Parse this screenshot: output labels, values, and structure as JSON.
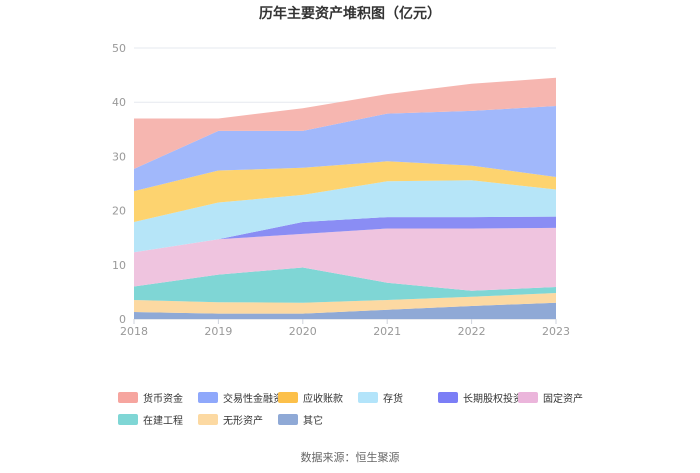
{
  "chart_data": {
    "type": "area",
    "title": "历年主要资产堆积图（亿元）",
    "xlabel": "",
    "ylabel": "",
    "categories": [
      "2018",
      "2019",
      "2020",
      "2021",
      "2022",
      "2023"
    ],
    "ylim": [
      0,
      50
    ],
    "yticks": [
      0,
      10,
      20,
      30,
      40,
      50
    ],
    "stacked": true,
    "series": [
      {
        "name": "其它",
        "color": "#8fa9d6",
        "values": [
          1.3,
          1.0,
          1.0,
          1.7,
          2.4,
          3.0
        ]
      },
      {
        "name": "无形资产",
        "color": "#fcd9a2",
        "values": [
          2.2,
          2.1,
          2.0,
          1.8,
          1.7,
          1.8
        ]
      },
      {
        "name": "在建工程",
        "color": "#7fd6d5",
        "values": [
          2.5,
          5.1,
          6.5,
          3.2,
          1.1,
          1.1
        ]
      },
      {
        "name": "固定资产",
        "color": "#efc4df",
        "values": [
          6.3,
          6.5,
          6.2,
          10.0,
          11.5,
          10.9
        ]
      },
      {
        "name": "长期股权投资",
        "color": "#8a8df4",
        "values": [
          0.0,
          0.0,
          2.2,
          2.1,
          2.1,
          2.1
        ]
      },
      {
        "name": "存货",
        "color": "#b6e5f8",
        "values": [
          5.6,
          6.8,
          5.0,
          6.6,
          6.8,
          5.0
        ]
      },
      {
        "name": "应收账款",
        "color": "#fdd36f",
        "values": [
          5.7,
          5.9,
          5.0,
          3.7,
          2.7,
          2.3
        ]
      },
      {
        "name": "交易性金融资产",
        "color": "#a1b8fb",
        "values": [
          4.1,
          7.3,
          6.8,
          8.8,
          10.1,
          13.1
        ]
      },
      {
        "name": "货币资金",
        "color": "#f6b6b0",
        "values": [
          9.3,
          2.3,
          4.2,
          3.6,
          5.0,
          5.2
        ]
      }
    ],
    "legend": {
      "position": "bottom",
      "order": [
        "货币资金",
        "交易性金融资产",
        "应收账款",
        "存货",
        "长期股权投资",
        "固定资产",
        "在建工程",
        "无形资产",
        "其它"
      ],
      "colors": [
        "#f6a59f",
        "#8fa8fb",
        "#fcc04a",
        "#b3e4fa",
        "#7b7ef6",
        "#ebb5db",
        "#7fd6d5",
        "#fcd9a2",
        "#8fa9d6"
      ]
    }
  },
  "source": "数据来源：恒生聚源"
}
